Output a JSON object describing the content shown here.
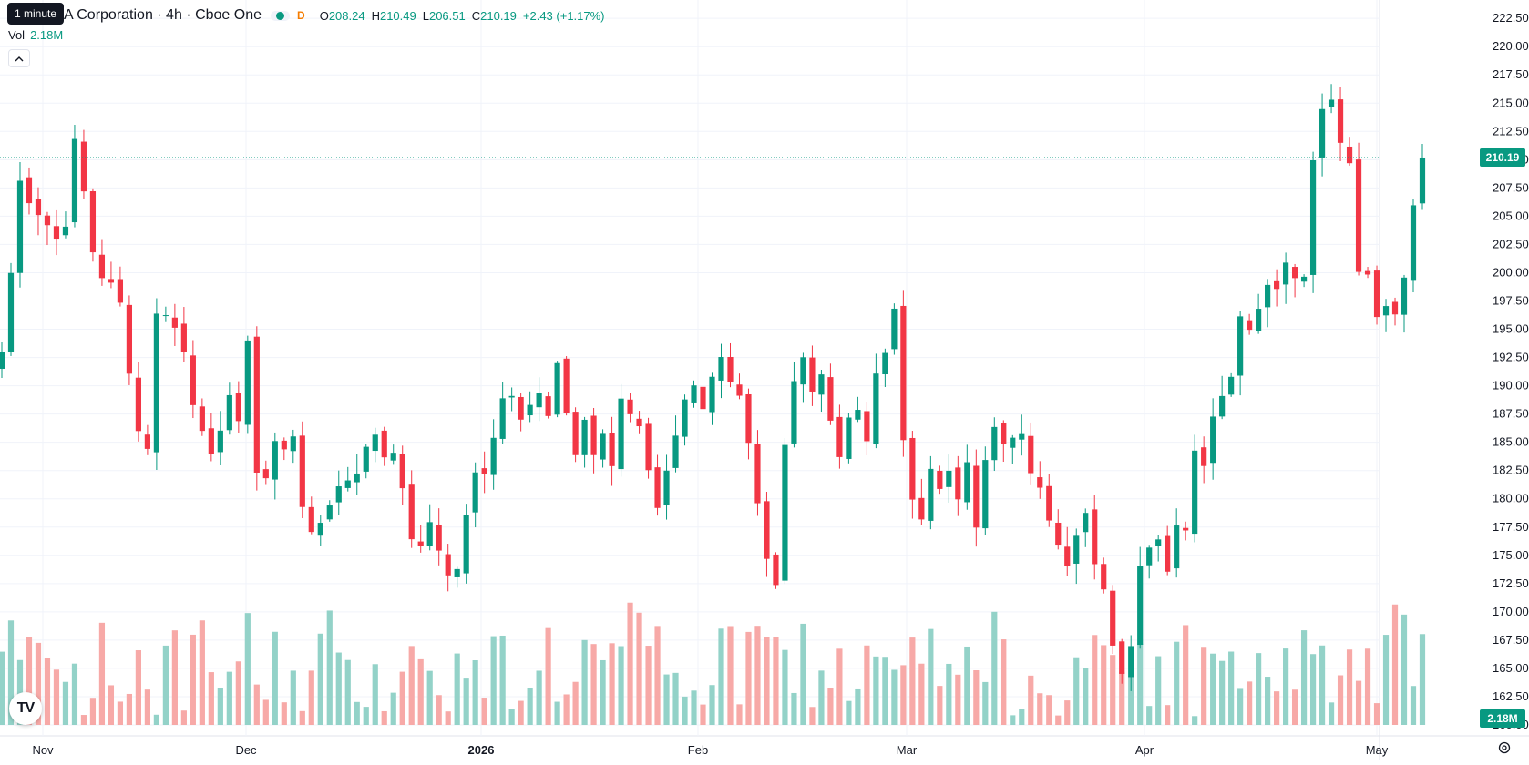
{
  "header": {
    "symbol_title": "A Corporation · 4h · Cboe One",
    "d_badge": "D",
    "tooltip": "1 minute",
    "ohlc": {
      "o_label": "O",
      "o_value": "208.24",
      "h_label": "H",
      "h_value": "210.49",
      "l_label": "L",
      "l_value": "206.51",
      "c_label": "C",
      "c_value": "210.19",
      "change": "+2.43 (+1.17%)"
    },
    "vol_label": "Vol",
    "vol_value": "2.18M",
    "collapse_icon": "chevron-up-icon"
  },
  "colors": {
    "up": "#089981",
    "down": "#f23645",
    "vol_up": "#93d2c8",
    "vol_down": "#f7a9a7"
  },
  "chart_data": {
    "type": "candlestick",
    "title": "",
    "y_ticks": [
      "222.50",
      "220.00",
      "217.50",
      "215.00",
      "212.50",
      "210.00",
      "207.50",
      "205.00",
      "202.50",
      "200.00",
      "197.50",
      "195.00",
      "192.50",
      "190.00",
      "187.50",
      "185.00",
      "182.50",
      "180.00",
      "177.50",
      "175.00",
      "172.50",
      "170.00",
      "167.50",
      "165.00",
      "162.50",
      "160.00"
    ],
    "ylim": [
      160.0,
      223.4
    ],
    "x_labels": [
      {
        "label": "Nov",
        "bold": false
      },
      {
        "label": "Dec",
        "bold": false
      },
      {
        "label": "2026",
        "bold": true
      },
      {
        "label": "Feb",
        "bold": false
      },
      {
        "label": "Mar",
        "bold": false
      },
      {
        "label": "Apr",
        "bold": false
      },
      {
        "label": "May",
        "bold": false
      }
    ],
    "last_price": "210.19",
    "last_volume": "2.18M",
    "close_path": [
      [
        0,
        193
      ],
      [
        1,
        200
      ],
      [
        2,
        208
      ],
      [
        3,
        207
      ],
      [
        6,
        203
      ],
      [
        7,
        205
      ],
      [
        8,
        211
      ],
      [
        9,
        207
      ],
      [
        10,
        202
      ],
      [
        11,
        200
      ],
      [
        13,
        197
      ],
      [
        14,
        192
      ],
      [
        15,
        186
      ],
      [
        16,
        185
      ],
      [
        17,
        196
      ],
      [
        18,
        197
      ],
      [
        19,
        195
      ],
      [
        20,
        193
      ],
      [
        21,
        189
      ],
      [
        22,
        187
      ],
      [
        23,
        183
      ],
      [
        24,
        185
      ],
      [
        25,
        190
      ],
      [
        26,
        187
      ],
      [
        27,
        193
      ],
      [
        28,
        183
      ],
      [
        29,
        182
      ],
      [
        30,
        185
      ],
      [
        31,
        184
      ],
      [
        32,
        186
      ],
      [
        33,
        180
      ],
      [
        34,
        176
      ],
      [
        35,
        178
      ],
      [
        36,
        180
      ],
      [
        38,
        182
      ],
      [
        40,
        184
      ],
      [
        41,
        186
      ],
      [
        42,
        184
      ],
      [
        43,
        185
      ],
      [
        44,
        180
      ],
      [
        45,
        177
      ],
      [
        46,
        175
      ],
      [
        47,
        178
      ],
      [
        48,
        176
      ],
      [
        49,
        173
      ],
      [
        50,
        174
      ],
      [
        51,
        178
      ],
      [
        52,
        182
      ],
      [
        53,
        183
      ],
      [
        54,
        186
      ],
      [
        55,
        189
      ],
      [
        56,
        190
      ],
      [
        57,
        188
      ],
      [
        59,
        189
      ],
      [
        60,
        187
      ],
      [
        61,
        191
      ],
      [
        62,
        188
      ],
      [
        63,
        184
      ],
      [
        64,
        187
      ],
      [
        65,
        184
      ],
      [
        66,
        185
      ],
      [
        67,
        183
      ],
      [
        68,
        189
      ],
      [
        70,
        187
      ],
      [
        71,
        182
      ],
      [
        72,
        180
      ],
      [
        73,
        183
      ],
      [
        74,
        185
      ],
      [
        75,
        188
      ],
      [
        76,
        189
      ],
      [
        77,
        187
      ],
      [
        78,
        190
      ],
      [
        79,
        192
      ],
      [
        80,
        190
      ],
      [
        81,
        189
      ],
      [
        82,
        186
      ],
      [
        83,
        180
      ],
      [
        84,
        175
      ],
      [
        85,
        173
      ],
      [
        86,
        185
      ],
      [
        87,
        190
      ],
      [
        88,
        192
      ],
      [
        89,
        190
      ],
      [
        90,
        190
      ],
      [
        91,
        188
      ],
      [
        92,
        184
      ],
      [
        93,
        187
      ],
      [
        94,
        188
      ],
      [
        95,
        186
      ],
      [
        96,
        190
      ],
      [
        97,
        193
      ],
      [
        98,
        196
      ],
      [
        99,
        185
      ],
      [
        100,
        180
      ],
      [
        101,
        179
      ],
      [
        102,
        182
      ],
      [
        103,
        180
      ],
      [
        104,
        183
      ],
      [
        105,
        181
      ],
      [
        106,
        184
      ],
      [
        107,
        177
      ],
      [
        108,
        183
      ],
      [
        109,
        186
      ],
      [
        110,
        184
      ],
      [
        111,
        186
      ],
      [
        112,
        185
      ],
      [
        113,
        183
      ],
      [
        114,
        182
      ],
      [
        115,
        179
      ],
      [
        116,
        177
      ],
      [
        117,
        174
      ],
      [
        118,
        176
      ],
      [
        119,
        178
      ],
      [
        120,
        175
      ],
      [
        121,
        172
      ],
      [
        122,
        168
      ],
      [
        123,
        165
      ],
      [
        124,
        167
      ],
      [
        125,
        175
      ],
      [
        126,
        176
      ],
      [
        127,
        177
      ],
      [
        128,
        174
      ],
      [
        129,
        177
      ],
      [
        130,
        178
      ],
      [
        131,
        185
      ],
      [
        132,
        184
      ],
      [
        133,
        187
      ],
      [
        134,
        190
      ],
      [
        135,
        191
      ],
      [
        136,
        197
      ],
      [
        137,
        195
      ],
      [
        138,
        197
      ],
      [
        139,
        200
      ],
      [
        140,
        198
      ],
      [
        141,
        201
      ],
      [
        142,
        199
      ],
      [
        143,
        200
      ],
      [
        144,
        209
      ],
      [
        145,
        214
      ],
      [
        146,
        215
      ],
      [
        147,
        212
      ],
      [
        148,
        210
      ],
      [
        149,
        201
      ],
      [
        150,
        199
      ],
      [
        151,
        197
      ],
      [
        152,
        198
      ],
      [
        153,
        197
      ],
      [
        154,
        200
      ],
      [
        155,
        207
      ],
      [
        156,
        210
      ]
    ],
    "volume_range": [
      0.4,
      2.8
    ]
  }
}
